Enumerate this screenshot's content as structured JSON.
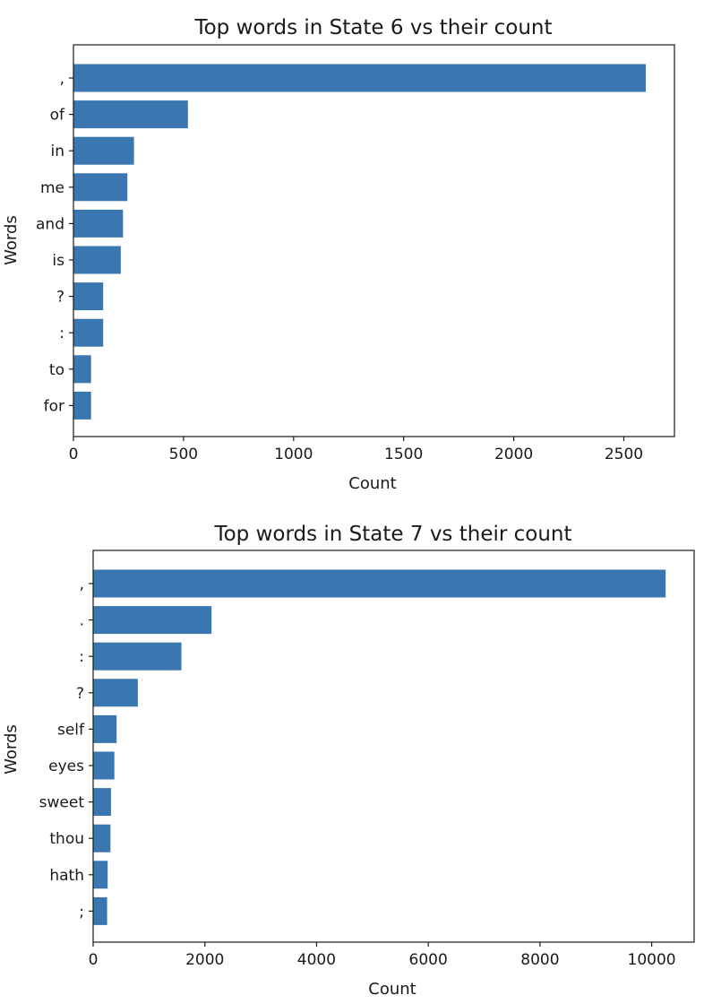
{
  "colors": {
    "bar": "#3a76af",
    "text": "#1a1a1a",
    "axis": "#1a1a1a"
  },
  "chart_data": [
    {
      "type": "bar",
      "orientation": "horizontal",
      "title": "Top words in State 6 vs their count",
      "xlabel": "Count",
      "ylabel": "Words",
      "categories": [
        ",",
        "of",
        "in",
        "me",
        "and",
        "is",
        "?",
        ":",
        "to",
        "for"
      ],
      "values": [
        2600,
        520,
        275,
        245,
        225,
        215,
        135,
        135,
        80,
        80
      ],
      "xlim": [
        0,
        2730
      ],
      "xticks": [
        0,
        500,
        1000,
        1500,
        2000,
        2500
      ],
      "xtick_labels": [
        "0",
        "500",
        "1000",
        "1500",
        "2000",
        "2500"
      ],
      "grid": false,
      "legend": "none"
    },
    {
      "type": "bar",
      "orientation": "horizontal",
      "title": "Top words in State 7 vs their count",
      "xlabel": "Count",
      "ylabel": "Words",
      "categories": [
        ",",
        ".",
        ":",
        "?",
        "self",
        "eyes",
        "sweet",
        "thou",
        "hath",
        ";"
      ],
      "values": [
        10250,
        2120,
        1580,
        800,
        420,
        380,
        320,
        310,
        260,
        250
      ],
      "xlim": [
        0,
        10760
      ],
      "xticks": [
        0,
        2000,
        4000,
        6000,
        8000,
        10000
      ],
      "xtick_labels": [
        "0",
        "2000",
        "4000",
        "6000",
        "8000",
        "10000"
      ],
      "grid": false,
      "legend": "none"
    }
  ]
}
